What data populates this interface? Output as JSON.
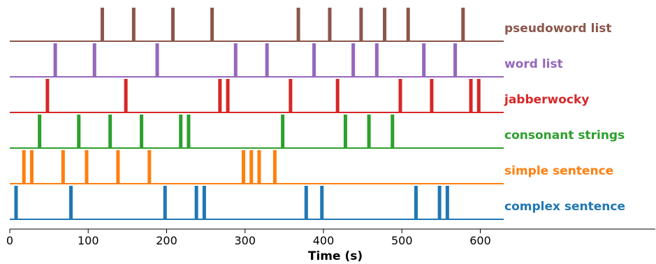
{
  "chart_data": {
    "type": "event-raster",
    "xlabel": "Time (s)",
    "xlim": [
      0,
      630
    ],
    "x_ticks": [
      0,
      100,
      200,
      300,
      400,
      500,
      600
    ],
    "series": [
      {
        "name": "complex sentence",
        "color": "#1f77b4",
        "events": [
          8,
          78,
          198,
          238,
          248,
          378,
          398,
          518,
          548,
          558
        ]
      },
      {
        "name": "simple sentence",
        "color": "#ff7f0e",
        "events": [
          18,
          28,
          68,
          98,
          138,
          178,
          298,
          308,
          318,
          338
        ]
      },
      {
        "name": "consonant strings",
        "color": "#2ca02c",
        "events": [
          38,
          88,
          128,
          168,
          218,
          228,
          348,
          428,
          458,
          488
        ]
      },
      {
        "name": "jabberwocky",
        "color": "#d62728",
        "events": [
          48,
          148,
          268,
          278,
          358,
          418,
          498,
          538,
          588,
          598
        ]
      },
      {
        "name": "word list",
        "color": "#9467bd",
        "events": [
          58,
          108,
          188,
          288,
          328,
          388,
          438,
          468,
          528,
          568
        ]
      },
      {
        "name": "pseudoword list",
        "color": "#8c564b",
        "events": [
          118,
          158,
          208,
          258,
          368,
          408,
          448,
          478,
          508,
          578
        ]
      }
    ]
  }
}
